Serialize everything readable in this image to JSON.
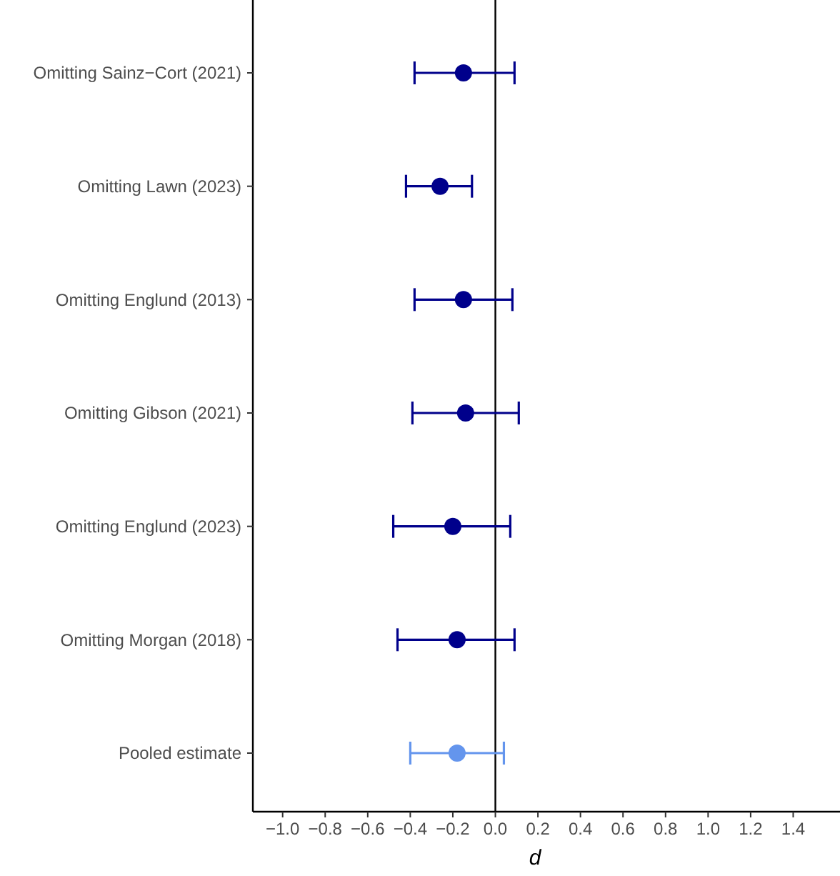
{
  "chart_data": {
    "type": "scatter",
    "orientation": "horizontal",
    "xlabel": "d",
    "marker": "circle",
    "grid": false,
    "categories": [
      "Omitting Sainz−Cort (2021)",
      "Omitting Lawn (2023)",
      "Omitting Englund (2013)",
      "Omitting Gibson (2021)",
      "Omitting Englund (2023)",
      "Omitting Morgan (2018)",
      "Pooled estimate"
    ],
    "values": [
      -0.15,
      -0.26,
      -0.15,
      -0.14,
      -0.2,
      -0.18,
      -0.18
    ],
    "errors": [
      [
        -0.38,
        0.09
      ],
      [
        -0.42,
        -0.11
      ],
      [
        -0.38,
        0.08
      ],
      [
        -0.39,
        0.11
      ],
      [
        -0.48,
        0.07
      ],
      [
        -0.46,
        0.09
      ],
      [
        -0.4,
        0.04
      ]
    ],
    "colors": [
      "#00008b",
      "#00008b",
      "#00008b",
      "#00008b",
      "#00008b",
      "#00008b",
      "#6495ed"
    ],
    "xlim": [
      -1.14,
      1.62
    ],
    "xticks": [
      {
        "value": -1,
        "label": "−1.0"
      },
      {
        "value": -0.8,
        "label": "−0.8"
      },
      {
        "value": -0.6,
        "label": "−0.6"
      },
      {
        "value": -0.4,
        "label": "−0.4"
      },
      {
        "value": -0.2,
        "label": "−0.2"
      },
      {
        "value": 0,
        "label": "0.0"
      },
      {
        "value": 0.2,
        "label": "0.2"
      },
      {
        "value": 0.4,
        "label": "0.4"
      },
      {
        "value": 0.6,
        "label": "0.6"
      },
      {
        "value": 0.8,
        "label": "0.8"
      },
      {
        "value": 1,
        "label": "1.0"
      },
      {
        "value": 1.2,
        "label": "1.2"
      },
      {
        "value": 1.4,
        "label": "1.4"
      }
    ],
    "ref_lines": [
      {
        "axis": "x",
        "value": 0,
        "color": "#000000",
        "line_style": "solid"
      }
    ]
  }
}
